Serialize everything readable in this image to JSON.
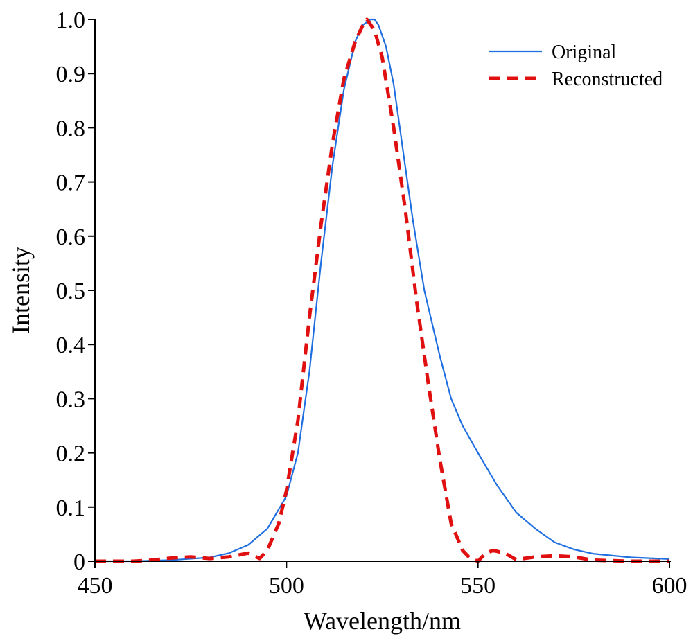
{
  "chart_data": {
    "type": "line",
    "title": "",
    "xlabel": "Wavelength/nm",
    "ylabel": "Intensity",
    "xlim": [
      450,
      600
    ],
    "ylim": [
      0,
      1.0
    ],
    "x_ticks": [
      "450",
      "500",
      "550",
      "600"
    ],
    "y_ticks": [
      "0",
      "0.1",
      "0.2",
      "0.3",
      "0.4",
      "0.5",
      "0.6",
      "0.7",
      "0.8",
      "0.9",
      "1.0"
    ],
    "grid": false,
    "legend_position": "top-right",
    "series": [
      {
        "name": "Original",
        "color": "#1f6fe0",
        "style": "solid",
        "x": [
          450,
          460,
          470,
          480,
          485,
          490,
          495,
          500,
          503,
          506,
          509,
          512,
          515,
          518,
          520,
          522,
          523,
          524,
          526,
          528,
          530,
          533,
          536,
          540,
          543,
          546,
          550,
          555,
          560,
          565,
          570,
          575,
          580,
          590,
          600
        ],
        "y": [
          0.0,
          0.0,
          0.002,
          0.007,
          0.015,
          0.03,
          0.06,
          0.12,
          0.2,
          0.35,
          0.55,
          0.73,
          0.87,
          0.96,
          0.99,
          1.0,
          1.0,
          0.99,
          0.95,
          0.88,
          0.78,
          0.63,
          0.5,
          0.38,
          0.3,
          0.25,
          0.2,
          0.14,
          0.09,
          0.06,
          0.035,
          0.022,
          0.014,
          0.007,
          0.004
        ]
      },
      {
        "name": "Reconstructed",
        "color": "#e01010",
        "style": "dashed",
        "x": [
          450,
          460,
          465,
          470,
          475,
          480,
          485,
          490,
          493,
          495,
          498,
          500,
          503,
          506,
          509,
          512,
          515,
          518,
          520,
          521,
          523,
          525,
          528,
          531,
          534,
          537,
          540,
          543,
          546,
          548,
          550,
          552,
          554,
          557,
          560,
          565,
          570,
          575,
          580,
          590,
          600
        ],
        "y": [
          0.0,
          0.0,
          0.002,
          0.006,
          0.008,
          0.005,
          0.008,
          0.015,
          0.005,
          0.02,
          0.07,
          0.13,
          0.26,
          0.45,
          0.62,
          0.77,
          0.89,
          0.96,
          0.99,
          1.0,
          0.98,
          0.93,
          0.8,
          0.65,
          0.48,
          0.33,
          0.19,
          0.07,
          0.02,
          0.005,
          0.0,
          0.015,
          0.02,
          0.015,
          0.003,
          0.008,
          0.01,
          0.008,
          0.002,
          0.0,
          0.0
        ]
      }
    ]
  }
}
